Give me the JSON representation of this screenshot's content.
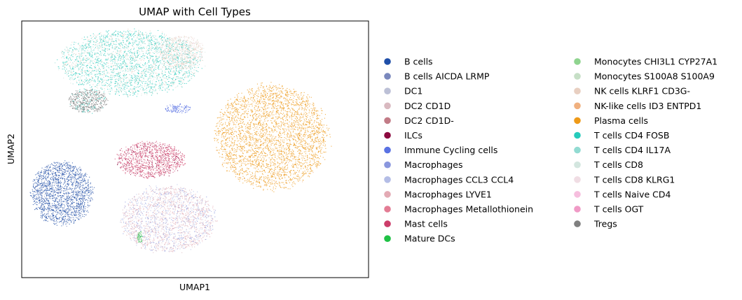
{
  "chart_data": {
    "type": "scatter",
    "title": "UMAP with Cell Types",
    "xlabel": "UMAP1",
    "ylabel": "UMAP2",
    "xticks": [],
    "yticks": [],
    "grid": false,
    "legend_position": "right-outside",
    "legend_columns": 2,
    "categories": [
      {
        "name": "B cells",
        "color": "#1f4fa8"
      },
      {
        "name": "B cells AICDA LRMP",
        "color": "#7a88bd"
      },
      {
        "name": "DC1",
        "color": "#bcc0d6"
      },
      {
        "name": "DC2 CD1D",
        "color": "#d9b9c0"
      },
      {
        "name": "DC2 CD1D-",
        "color": "#c27b86"
      },
      {
        "name": "ILCs",
        "color": "#8c0a3f"
      },
      {
        "name": "Immune Cycling cells",
        "color": "#5a72e3"
      },
      {
        "name": "Macrophages",
        "color": "#8a97de"
      },
      {
        "name": "Macrophages CCL3 CCL4",
        "color": "#b4bde6"
      },
      {
        "name": "Macrophages LYVE1",
        "color": "#e3aab4"
      },
      {
        "name": "Macrophages Metallothionein",
        "color": "#e37c94"
      },
      {
        "name": "Mast cells",
        "color": "#cc3d6a"
      },
      {
        "name": "Mature DCs",
        "color": "#1fc145"
      },
      {
        "name": "Monocytes CHI3L1 CYP27A1",
        "color": "#8fd48f"
      },
      {
        "name": "Monocytes S100A8 S100A9",
        "color": "#c6dfc6"
      },
      {
        "name": "NK cells KLRF1 CD3G-",
        "color": "#e8cfc1"
      },
      {
        "name": "NK-like cells ID3 ENTPD1",
        "color": "#f0b07f"
      },
      {
        "name": "Plasma cells",
        "color": "#ee9a18"
      },
      {
        "name": "T cells CD4 FOSB",
        "color": "#26cbbb"
      },
      {
        "name": "T cells CD4 IL17A",
        "color": "#92dbd2"
      },
      {
        "name": "T cells CD8",
        "color": "#d3e6df"
      },
      {
        "name": "T cells CD8 KLRG1",
        "color": "#f0dde4"
      },
      {
        "name": "T cells Naive CD4",
        "color": "#f6bede"
      },
      {
        "name": "T cells OGT",
        "color": "#f09ac6"
      },
      {
        "name": "Tregs",
        "color": "#7f7f7f"
      }
    ],
    "clusters": [
      {
        "name": "plasma",
        "cx": 0.72,
        "cy": 0.55,
        "rx": 0.175,
        "ry": 0.215,
        "mix": [
          [
            "Plasma cells",
            0.97
          ],
          [
            "NK-like cells ID3 ENTPD1",
            0.03
          ]
        ],
        "n": 3200
      },
      {
        "name": "t-cells",
        "cx": 0.31,
        "cy": 0.84,
        "rx": 0.22,
        "ry": 0.135,
        "mix": [
          [
            "T cells CD4 FOSB",
            0.5
          ],
          [
            "T cells CD4 IL17A",
            0.2
          ],
          [
            "T cells CD8",
            0.15
          ],
          [
            "NK cells KLRF1 CD3G-",
            0.15
          ]
        ],
        "n": 2800
      },
      {
        "name": "tregs",
        "cx": 0.19,
        "cy": 0.69,
        "rx": 0.06,
        "ry": 0.05,
        "mix": [
          [
            "Tregs",
            0.85
          ],
          [
            "T cells CD4 FOSB",
            0.15
          ]
        ],
        "n": 500
      },
      {
        "name": "nk-ish",
        "cx": 0.46,
        "cy": 0.88,
        "rx": 0.07,
        "ry": 0.07,
        "mix": [
          [
            "NK cells KLRF1 CD3G-",
            0.5
          ],
          [
            "T cells CD8 KLRG1",
            0.3
          ],
          [
            "T cells CD8",
            0.2
          ]
        ],
        "n": 600
      },
      {
        "name": "b-cells",
        "cx": 0.115,
        "cy": 0.33,
        "rx": 0.095,
        "ry": 0.13,
        "mix": [
          [
            "B cells",
            0.88
          ],
          [
            "B cells AICDA LRMP",
            0.12
          ]
        ],
        "n": 1700
      },
      {
        "name": "mast",
        "cx": 0.37,
        "cy": 0.46,
        "rx": 0.105,
        "ry": 0.075,
        "mix": [
          [
            "Mast cells",
            0.55
          ],
          [
            "Macrophages Metallothionein",
            0.3
          ],
          [
            "ILCs",
            0.15
          ]
        ],
        "n": 1100
      },
      {
        "name": "myeloid",
        "cx": 0.42,
        "cy": 0.23,
        "rx": 0.145,
        "ry": 0.14,
        "mix": [
          [
            "Macrophages LYVE1",
            0.3
          ],
          [
            "DC2 CD1D",
            0.25
          ],
          [
            "Macrophages CCL3 CCL4",
            0.2
          ],
          [
            "Macrophages",
            0.15
          ],
          [
            "T cells CD8 KLRG1",
            0.1
          ]
        ],
        "n": 2000
      },
      {
        "name": "cycling",
        "cx": 0.45,
        "cy": 0.66,
        "rx": 0.04,
        "ry": 0.02,
        "mix": [
          [
            "Immune Cycling cells",
            1.0
          ]
        ],
        "n": 120
      },
      {
        "name": "mature-dc",
        "cx": 0.34,
        "cy": 0.16,
        "rx": 0.008,
        "ry": 0.025,
        "mix": [
          [
            "Mature DCs",
            0.6
          ],
          [
            "Monocytes CHI3L1 CYP27A1",
            0.4
          ]
        ],
        "n": 60
      }
    ]
  }
}
